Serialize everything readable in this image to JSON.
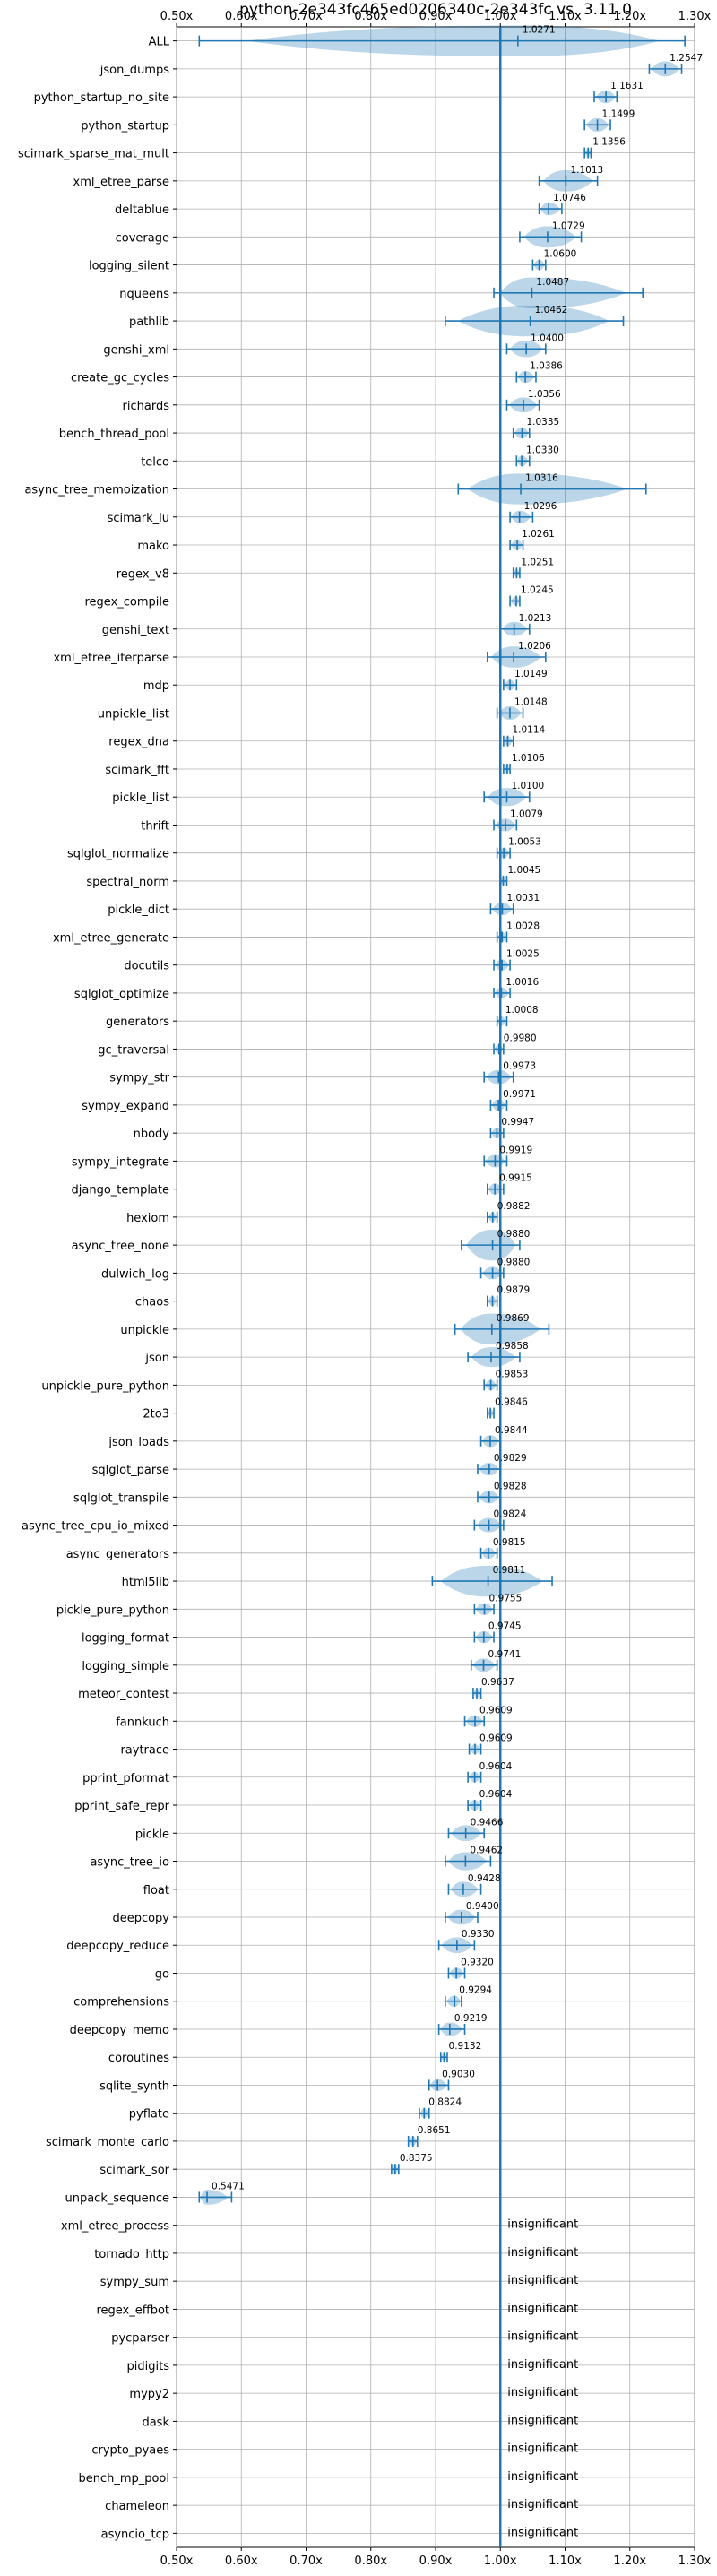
{
  "chart_data": {
    "type": "violin",
    "title": "python-2e343fc465ed0206340c-2e343fc vs. 3.11.0",
    "xlim": [
      0.5,
      1.3
    ],
    "x_ticks": [
      0.5,
      0.6,
      0.7,
      0.8,
      0.9,
      1.0,
      1.1,
      1.2,
      1.3
    ],
    "x_tick_labels": [
      "0.50x",
      "0.60x",
      "0.70x",
      "0.80x",
      "0.90x",
      "1.00x",
      "1.10x",
      "1.20x",
      "1.30x"
    ],
    "reference_line": 1.0,
    "grid": true,
    "insignificant_label": "insignificant",
    "rows": [
      {
        "name": "ALL",
        "value": 1.0271,
        "label": "1.0271",
        "min": 0.535,
        "max": 1.285,
        "wide": true
      },
      {
        "name": "json_dumps",
        "value": 1.2547,
        "label": "1.2547",
        "min": 1.23,
        "max": 1.28
      },
      {
        "name": "python_startup_no_site",
        "value": 1.1631,
        "label": "1.1631",
        "min": 1.145,
        "max": 1.18
      },
      {
        "name": "python_startup",
        "value": 1.1499,
        "label": "1.1499",
        "min": 1.13,
        "max": 1.17
      },
      {
        "name": "scimark_sparse_mat_mult",
        "value": 1.1356,
        "label": "1.1356",
        "min": 1.13,
        "max": 1.14
      },
      {
        "name": "xml_etree_parse",
        "value": 1.1013,
        "label": "1.1013",
        "min": 1.06,
        "max": 1.15
      },
      {
        "name": "deltablue",
        "value": 1.0746,
        "label": "1.0746",
        "min": 1.06,
        "max": 1.095
      },
      {
        "name": "coverage",
        "value": 1.0729,
        "label": "1.0729",
        "min": 1.03,
        "max": 1.125
      },
      {
        "name": "logging_silent",
        "value": 1.06,
        "label": "1.0600",
        "min": 1.05,
        "max": 1.07
      },
      {
        "name": "nqueens",
        "value": 1.0487,
        "label": "1.0487",
        "min": 0.99,
        "max": 1.22,
        "wide": true
      },
      {
        "name": "pathlib",
        "value": 1.0462,
        "label": "1.0462",
        "min": 0.915,
        "max": 1.19,
        "wide": true
      },
      {
        "name": "genshi_xml",
        "value": 1.04,
        "label": "1.0400",
        "min": 1.01,
        "max": 1.07
      },
      {
        "name": "create_gc_cycles",
        "value": 1.0386,
        "label": "1.0386",
        "min": 1.025,
        "max": 1.055
      },
      {
        "name": "richards",
        "value": 1.0356,
        "label": "1.0356",
        "min": 1.01,
        "max": 1.06
      },
      {
        "name": "bench_thread_pool",
        "value": 1.0335,
        "label": "1.0335",
        "min": 1.02,
        "max": 1.045
      },
      {
        "name": "telco",
        "value": 1.033,
        "label": "1.0330",
        "min": 1.025,
        "max": 1.045
      },
      {
        "name": "async_tree_memoization",
        "value": 1.0316,
        "label": "1.0316",
        "min": 0.935,
        "max": 1.225,
        "wide": true
      },
      {
        "name": "scimark_lu",
        "value": 1.0296,
        "label": "1.0296",
        "min": 1.015,
        "max": 1.05
      },
      {
        "name": "mako",
        "value": 1.0261,
        "label": "1.0261",
        "min": 1.015,
        "max": 1.035
      },
      {
        "name": "regex_v8",
        "value": 1.0251,
        "label": "1.0251",
        "min": 1.02,
        "max": 1.03
      },
      {
        "name": "regex_compile",
        "value": 1.0245,
        "label": "1.0245",
        "min": 1.015,
        "max": 1.03
      },
      {
        "name": "genshi_text",
        "value": 1.0213,
        "label": "1.0213",
        "min": 1.0,
        "max": 1.045
      },
      {
        "name": "xml_etree_iterparse",
        "value": 1.0206,
        "label": "1.0206",
        "min": 0.98,
        "max": 1.07
      },
      {
        "name": "mdp",
        "value": 1.0149,
        "label": "1.0149",
        "min": 1.005,
        "max": 1.025
      },
      {
        "name": "unpickle_list",
        "value": 1.0148,
        "label": "1.0148",
        "min": 0.995,
        "max": 1.035
      },
      {
        "name": "regex_dna",
        "value": 1.0114,
        "label": "1.0114",
        "min": 1.005,
        "max": 1.02
      },
      {
        "name": "scimark_fft",
        "value": 1.0106,
        "label": "1.0106",
        "min": 1.005,
        "max": 1.015
      },
      {
        "name": "pickle_list",
        "value": 1.01,
        "label": "1.0100",
        "min": 0.975,
        "max": 1.045
      },
      {
        "name": "thrift",
        "value": 1.0079,
        "label": "1.0079",
        "min": 0.99,
        "max": 1.025
      },
      {
        "name": "sqlglot_normalize",
        "value": 1.0053,
        "label": "1.0053",
        "min": 0.995,
        "max": 1.015
      },
      {
        "name": "spectral_norm",
        "value": 1.0045,
        "label": "1.0045",
        "min": 1.0,
        "max": 1.01
      },
      {
        "name": "pickle_dict",
        "value": 1.0031,
        "label": "1.0031",
        "min": 0.985,
        "max": 1.02
      },
      {
        "name": "xml_etree_generate",
        "value": 1.0028,
        "label": "1.0028",
        "min": 0.995,
        "max": 1.01
      },
      {
        "name": "docutils",
        "value": 1.0025,
        "label": "1.0025",
        "min": 0.99,
        "max": 1.015
      },
      {
        "name": "sqlglot_optimize",
        "value": 1.0016,
        "label": "1.0016",
        "min": 0.99,
        "max": 1.015
      },
      {
        "name": "generators",
        "value": 1.0008,
        "label": "1.0008",
        "min": 0.995,
        "max": 1.01
      },
      {
        "name": "gc_traversal",
        "value": 0.998,
        "label": "0.9980",
        "min": 0.99,
        "max": 1.005
      },
      {
        "name": "sympy_str",
        "value": 0.9973,
        "label": "0.9973",
        "min": 0.975,
        "max": 1.02
      },
      {
        "name": "sympy_expand",
        "value": 0.9971,
        "label": "0.9971",
        "min": 0.985,
        "max": 1.01
      },
      {
        "name": "nbody",
        "value": 0.9947,
        "label": "0.9947",
        "min": 0.985,
        "max": 1.005
      },
      {
        "name": "sympy_integrate",
        "value": 0.9919,
        "label": "0.9919",
        "min": 0.975,
        "max": 1.01
      },
      {
        "name": "django_template",
        "value": 0.9915,
        "label": "0.9915",
        "min": 0.98,
        "max": 1.005
      },
      {
        "name": "hexiom",
        "value": 0.9882,
        "label": "0.9882",
        "min": 0.98,
        "max": 0.995
      },
      {
        "name": "async_tree_none",
        "value": 0.988,
        "label": "0.9880",
        "min": 0.94,
        "max": 1.03,
        "wide": true
      },
      {
        "name": "dulwich_log",
        "value": 0.988,
        "label": "0.9880",
        "min": 0.97,
        "max": 1.005
      },
      {
        "name": "chaos",
        "value": 0.9879,
        "label": "0.9879",
        "min": 0.98,
        "max": 0.995
      },
      {
        "name": "unpickle",
        "value": 0.9869,
        "label": "0.9869",
        "min": 0.93,
        "max": 1.075,
        "wide": true
      },
      {
        "name": "json",
        "value": 0.9858,
        "label": "0.9858",
        "min": 0.95,
        "max": 1.03
      },
      {
        "name": "unpickle_pure_python",
        "value": 0.9853,
        "label": "0.9853",
        "min": 0.975,
        "max": 0.995
      },
      {
        "name": "2to3",
        "value": 0.9846,
        "label": "0.9846",
        "min": 0.98,
        "max": 0.99
      },
      {
        "name": "json_loads",
        "value": 0.9844,
        "label": "0.9844",
        "min": 0.97,
        "max": 1.0
      },
      {
        "name": "sqlglot_parse",
        "value": 0.9829,
        "label": "0.9829",
        "min": 0.965,
        "max": 1.0
      },
      {
        "name": "sqlglot_transpile",
        "value": 0.9828,
        "label": "0.9828",
        "min": 0.965,
        "max": 1.0
      },
      {
        "name": "async_tree_cpu_io_mixed",
        "value": 0.9824,
        "label": "0.9824",
        "min": 0.96,
        "max": 1.005
      },
      {
        "name": "async_generators",
        "value": 0.9815,
        "label": "0.9815",
        "min": 0.97,
        "max": 0.995
      },
      {
        "name": "html5lib",
        "value": 0.9811,
        "label": "0.9811",
        "min": 0.895,
        "max": 1.08,
        "wide": true
      },
      {
        "name": "pickle_pure_python",
        "value": 0.9755,
        "label": "0.9755",
        "min": 0.96,
        "max": 0.99
      },
      {
        "name": "logging_format",
        "value": 0.9745,
        "label": "0.9745",
        "min": 0.96,
        "max": 0.99
      },
      {
        "name": "logging_simple",
        "value": 0.9741,
        "label": "0.9741",
        "min": 0.955,
        "max": 0.995
      },
      {
        "name": "meteor_contest",
        "value": 0.9637,
        "label": "0.9637",
        "min": 0.958,
        "max": 0.97
      },
      {
        "name": "fannkuch",
        "value": 0.9609,
        "label": "0.9609",
        "min": 0.945,
        "max": 0.975
      },
      {
        "name": "raytrace",
        "value": 0.9609,
        "label": "0.9609",
        "min": 0.952,
        "max": 0.97
      },
      {
        "name": "pprint_pformat",
        "value": 0.9604,
        "label": "0.9604",
        "min": 0.95,
        "max": 0.97
      },
      {
        "name": "pprint_safe_repr",
        "value": 0.9604,
        "label": "0.9604",
        "min": 0.95,
        "max": 0.97
      },
      {
        "name": "pickle",
        "value": 0.9466,
        "label": "0.9466",
        "min": 0.92,
        "max": 0.975
      },
      {
        "name": "async_tree_io",
        "value": 0.9462,
        "label": "0.9462",
        "min": 0.915,
        "max": 0.985
      },
      {
        "name": "float",
        "value": 0.9428,
        "label": "0.9428",
        "min": 0.92,
        "max": 0.97
      },
      {
        "name": "deepcopy",
        "value": 0.94,
        "label": "0.9400",
        "min": 0.915,
        "max": 0.965
      },
      {
        "name": "deepcopy_reduce",
        "value": 0.933,
        "label": "0.9330",
        "min": 0.905,
        "max": 0.96
      },
      {
        "name": "go",
        "value": 0.932,
        "label": "0.9320",
        "min": 0.92,
        "max": 0.945
      },
      {
        "name": "comprehensions",
        "value": 0.9294,
        "label": "0.9294",
        "min": 0.915,
        "max": 0.94
      },
      {
        "name": "deepcopy_memo",
        "value": 0.9219,
        "label": "0.9219",
        "min": 0.905,
        "max": 0.945
      },
      {
        "name": "coroutines",
        "value": 0.9132,
        "label": "0.9132",
        "min": 0.908,
        "max": 0.918
      },
      {
        "name": "sqlite_synth",
        "value": 0.903,
        "label": "0.9030",
        "min": 0.89,
        "max": 0.92
      },
      {
        "name": "pyflate",
        "value": 0.8824,
        "label": "0.8824",
        "min": 0.875,
        "max": 0.89
      },
      {
        "name": "scimark_monte_carlo",
        "value": 0.8651,
        "label": "0.8651",
        "min": 0.858,
        "max": 0.872
      },
      {
        "name": "scimark_sor",
        "value": 0.8375,
        "label": "0.8375",
        "min": 0.832,
        "max": 0.843
      },
      {
        "name": "unpack_sequence",
        "value": 0.5471,
        "label": "0.5471",
        "min": 0.535,
        "max": 0.585
      },
      {
        "name": "xml_etree_process",
        "value": null,
        "label": "insignificant"
      },
      {
        "name": "tornado_http",
        "value": null,
        "label": "insignificant"
      },
      {
        "name": "sympy_sum",
        "value": null,
        "label": "insignificant"
      },
      {
        "name": "regex_effbot",
        "value": null,
        "label": "insignificant"
      },
      {
        "name": "pycparser",
        "value": null,
        "label": "insignificant"
      },
      {
        "name": "pidigits",
        "value": null,
        "label": "insignificant"
      },
      {
        "name": "mypy2",
        "value": null,
        "label": "insignificant"
      },
      {
        "name": "dask",
        "value": null,
        "label": "insignificant"
      },
      {
        "name": "crypto_pyaes",
        "value": null,
        "label": "insignificant"
      },
      {
        "name": "bench_mp_pool",
        "value": null,
        "label": "insignificant"
      },
      {
        "name": "chameleon",
        "value": null,
        "label": "insignificant"
      },
      {
        "name": "asyncio_tcp",
        "value": null,
        "label": "insignificant"
      }
    ]
  },
  "colors": {
    "mark": "#1f77b4",
    "violin_fill": "#1f77b4",
    "grid": "#b0b0b0",
    "text": "#000000"
  }
}
